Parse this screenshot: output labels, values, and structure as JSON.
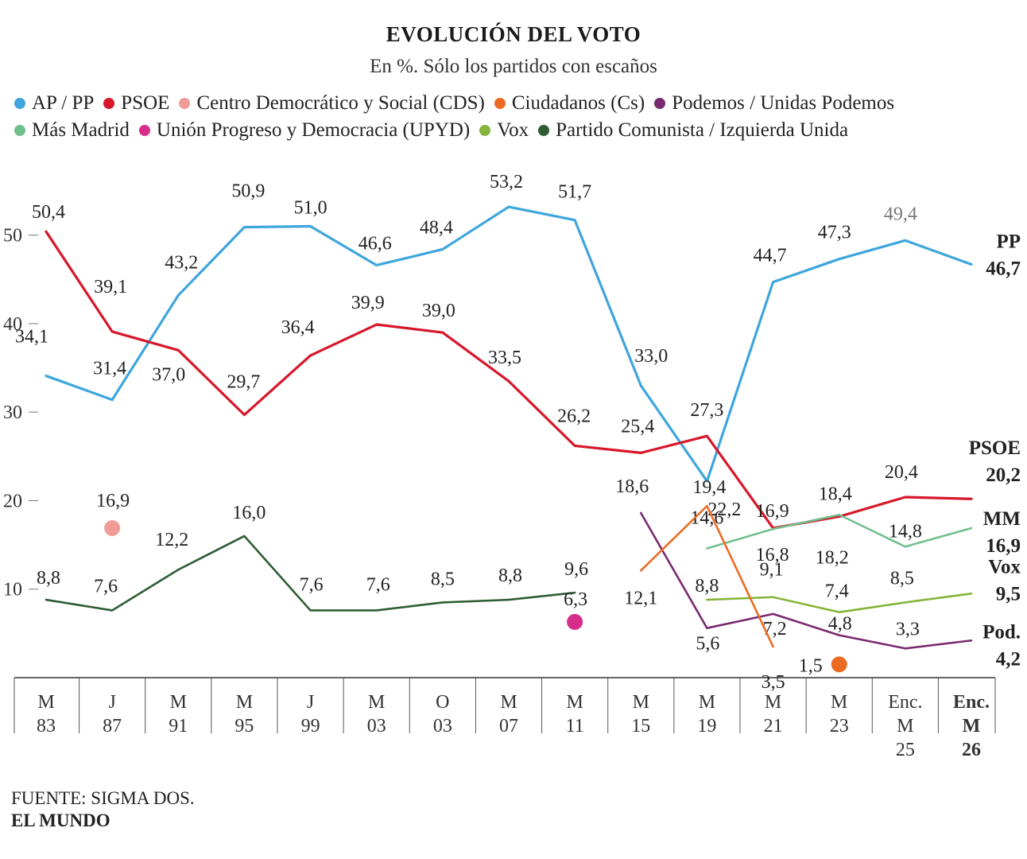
{
  "header": {
    "title": "EVOLUCIÓN DEL VOTO",
    "subtitle": "En %. Sólo los partidos con escaños"
  },
  "legend": {
    "rows": [
      [
        {
          "label": "AP / PP",
          "color": "#3ea6dc"
        },
        {
          "label": "PSOE",
          "color": "#d7172a"
        },
        {
          "label": "Centro Democrático y Social (CDS)",
          "color": "#f19b96"
        },
        {
          "label": "Ciudadanos (Cs)",
          "color": "#ec6b22"
        },
        {
          "label": "Podemos / Unidas Podemos",
          "color": "#7a2a6e"
        }
      ],
      [
        {
          "label": "Más Madrid",
          "color": "#71bf8d"
        },
        {
          "label": "Unión Progreso y Democracia (UPYD)",
          "color": "#d62d8a"
        },
        {
          "label": "Vox",
          "color": "#86b43a"
        },
        {
          "label": "Partido Comunista / Izquierda Unida",
          "color": "#2e5d35"
        }
      ]
    ]
  },
  "footer": {
    "source": "FUENTE: SIGMA DOS.",
    "brand": "EL MUNDO"
  },
  "chart_data": {
    "type": "line",
    "categories": [
      {
        "label": [
          "M",
          "83"
        ],
        "bold": false
      },
      {
        "label": [
          "J",
          "87"
        ],
        "bold": false
      },
      {
        "label": [
          "M",
          "91"
        ],
        "bold": false
      },
      {
        "label": [
          "M",
          "95"
        ],
        "bold": false
      },
      {
        "label": [
          "J",
          "99"
        ],
        "bold": false
      },
      {
        "label": [
          "M",
          "03"
        ],
        "bold": false
      },
      {
        "label": [
          "O",
          "03"
        ],
        "bold": false
      },
      {
        "label": [
          "M",
          "07"
        ],
        "bold": false
      },
      {
        "label": [
          "M",
          "11"
        ],
        "bold": false
      },
      {
        "label": [
          "M",
          "15"
        ],
        "bold": false
      },
      {
        "label": [
          "M",
          "19"
        ],
        "bold": false
      },
      {
        "label": [
          "M",
          "21"
        ],
        "bold": false
      },
      {
        "label": [
          "M",
          "23"
        ],
        "bold": false
      },
      {
        "label": [
          "Enc.",
          "M",
          "25"
        ],
        "bold": false
      },
      {
        "label": [
          "Enc.",
          "M",
          "26"
        ],
        "bold": true
      }
    ],
    "y_ticks": [
      10,
      20,
      30,
      40,
      50
    ],
    "ylim": [
      0,
      55
    ],
    "grid": false,
    "series": [
      {
        "name": "AP / PP",
        "color": "#3ea6dc",
        "values": [
          34.1,
          31.4,
          43.2,
          50.9,
          51.0,
          46.6,
          48.4,
          53.2,
          51.7,
          33.0,
          22.2,
          44.7,
          47.3,
          49.4,
          46.7
        ],
        "labels": [
          "34,1",
          "31,4",
          "43,2",
          "50,9",
          "51,0",
          "46,6",
          "48,4",
          "53,2",
          "51,7",
          "33,0",
          "22,2",
          "44,7",
          "47,3",
          "49,4",
          null
        ],
        "end_label": [
          "PP",
          "46,7"
        ]
      },
      {
        "name": "PSOE",
        "color": "#d7172a",
        "values": [
          50.4,
          39.1,
          37.0,
          29.7,
          36.4,
          39.9,
          39.0,
          33.5,
          26.2,
          25.4,
          27.3,
          16.9,
          18.2,
          20.4,
          20.2
        ],
        "labels": [
          "50,4",
          "39,1",
          "37,0",
          "29,7",
          "36,4",
          "39,9",
          "39,0",
          "33,5",
          "26,2",
          "25,4",
          "27,3",
          "16,9",
          "18,2",
          "20,4",
          null
        ],
        "end_label": [
          "PSOE",
          "20,2"
        ]
      },
      {
        "name": "Más Madrid",
        "color": "#71bf8d",
        "values": [
          null,
          null,
          null,
          null,
          null,
          null,
          null,
          null,
          null,
          null,
          14.6,
          16.8,
          18.4,
          14.8,
          16.9
        ],
        "labels": [
          null,
          null,
          null,
          null,
          null,
          null,
          null,
          null,
          null,
          null,
          "14,6",
          "16,8",
          "18,4",
          "14,8",
          null
        ],
        "end_label": [
          "MM",
          "16,9"
        ]
      },
      {
        "name": "Vox",
        "color": "#86b43a",
        "values": [
          null,
          null,
          null,
          null,
          null,
          null,
          null,
          null,
          null,
          null,
          8.8,
          9.1,
          7.4,
          8.5,
          9.5
        ],
        "labels": [
          null,
          null,
          null,
          null,
          null,
          null,
          null,
          null,
          null,
          null,
          "8,8",
          "9,1",
          "7,4",
          "8,5",
          null
        ],
        "end_label": [
          "Vox",
          "9,5"
        ]
      },
      {
        "name": "Podemos / Unidas Podemos",
        "color": "#7a2a6e",
        "values": [
          null,
          null,
          null,
          null,
          null,
          null,
          null,
          null,
          null,
          18.6,
          5.6,
          7.2,
          4.8,
          3.3,
          4.2
        ],
        "labels": [
          null,
          null,
          null,
          null,
          null,
          null,
          null,
          null,
          null,
          "18,6",
          "5,6",
          "7,2",
          "4,8",
          "3,3",
          null
        ],
        "end_label": [
          "Pod.",
          "4,2"
        ]
      },
      {
        "name": "Ciudadanos (Cs)",
        "color": "#ec6b22",
        "values": [
          null,
          null,
          null,
          null,
          null,
          null,
          null,
          null,
          null,
          12.1,
          19.4,
          3.5,
          1.5,
          null,
          null
        ],
        "labels": [
          null,
          null,
          null,
          null,
          null,
          null,
          null,
          null,
          null,
          "12,1",
          "19,4",
          "3,5",
          "1,5",
          null,
          null
        ],
        "marker_only_points": [
          12
        ]
      },
      {
        "name": "Partido Comunista / Izquierda Unida",
        "color": "#2e5d35",
        "values": [
          8.8,
          7.6,
          12.2,
          16.0,
          7.6,
          7.6,
          8.5,
          8.8,
          9.6,
          null,
          null,
          null,
          null,
          null,
          null
        ],
        "labels": [
          "8,8",
          "7,6",
          "12,2",
          "16,0",
          "7,6",
          "7,6",
          "8,5",
          "8,8",
          "9,6",
          null,
          null,
          null,
          null,
          null,
          null
        ]
      },
      {
        "name": "Centro Democrático y Social (CDS)",
        "color": "#f19b96",
        "values": [
          null,
          16.9,
          null,
          null,
          null,
          null,
          null,
          null,
          null,
          null,
          null,
          null,
          null,
          null,
          null
        ],
        "labels": [
          null,
          "16,9",
          null,
          null,
          null,
          null,
          null,
          null,
          null,
          null,
          null,
          null,
          null,
          null,
          null
        ],
        "marker_only_points": [
          1
        ]
      },
      {
        "name": "Unión Progreso y Democracia (UPYD)",
        "color": "#d62d8a",
        "values": [
          null,
          null,
          null,
          null,
          null,
          null,
          null,
          null,
          6.3,
          null,
          null,
          null,
          null,
          null,
          null
        ],
        "labels": [
          null,
          null,
          null,
          null,
          null,
          null,
          null,
          null,
          "6,3",
          null,
          null,
          null,
          null,
          null,
          null
        ],
        "marker_only_points": [
          8
        ]
      }
    ]
  }
}
